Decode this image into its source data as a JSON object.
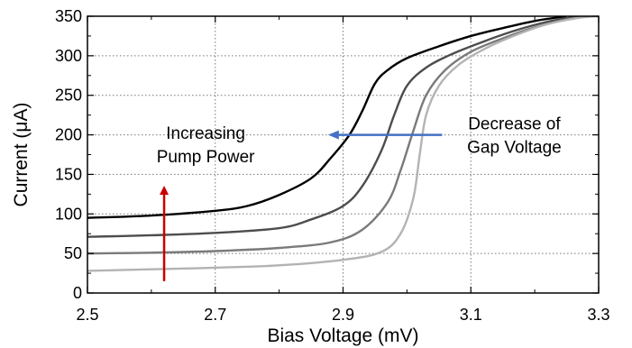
{
  "chart_data": {
    "type": "line",
    "xlabel": "Bias Voltage (mV)",
    "ylabel": "Current (μA)",
    "xlim": [
      2.5,
      3.3
    ],
    "ylim": [
      0,
      350
    ],
    "xticks": [
      "2.5",
      "2.7",
      "2.9",
      "3.1",
      "3.3"
    ],
    "yticks": [
      "0",
      "50",
      "100",
      "150",
      "200",
      "250",
      "300",
      "350"
    ],
    "grid": "dotted",
    "series": [
      {
        "color": "#000000",
        "points": [
          [
            2.5,
            95
          ],
          [
            2.6,
            98
          ],
          [
            2.7,
            104
          ],
          [
            2.75,
            110
          ],
          [
            2.8,
            124
          ],
          [
            2.85,
            145
          ],
          [
            2.88,
            170
          ],
          [
            2.91,
            200
          ],
          [
            2.93,
            230
          ],
          [
            2.95,
            265
          ],
          [
            2.97,
            282
          ],
          [
            3.0,
            297
          ],
          [
            3.05,
            312
          ],
          [
            3.1,
            325
          ],
          [
            3.15,
            335
          ],
          [
            3.2,
            344
          ],
          [
            3.25,
            350
          ]
        ]
      },
      {
        "color": "#4d4d4d",
        "points": [
          [
            2.5,
            71
          ],
          [
            2.6,
            73
          ],
          [
            2.7,
            76
          ],
          [
            2.8,
            82
          ],
          [
            2.85,
            93
          ],
          [
            2.9,
            110
          ],
          [
            2.93,
            135
          ],
          [
            2.96,
            180
          ],
          [
            2.98,
            225
          ],
          [
            3.0,
            262
          ],
          [
            3.03,
            285
          ],
          [
            3.07,
            302
          ],
          [
            3.12,
            318
          ],
          [
            3.17,
            332
          ],
          [
            3.22,
            343
          ],
          [
            3.27,
            350
          ]
        ]
      },
      {
        "color": "#7a7a7a",
        "points": [
          [
            2.5,
            50
          ],
          [
            2.6,
            51
          ],
          [
            2.7,
            53
          ],
          [
            2.8,
            57
          ],
          [
            2.88,
            64
          ],
          [
            2.93,
            80
          ],
          [
            2.97,
            115
          ],
          [
            2.99,
            155
          ],
          [
            3.01,
            205
          ],
          [
            3.03,
            250
          ],
          [
            3.06,
            282
          ],
          [
            3.1,
            305
          ],
          [
            3.15,
            322
          ],
          [
            3.2,
            336
          ],
          [
            3.25,
            346
          ],
          [
            3.28,
            350
          ]
        ]
      },
      {
        "color": "#b3b3b3",
        "points": [
          [
            2.5,
            28
          ],
          [
            2.6,
            30
          ],
          [
            2.7,
            32
          ],
          [
            2.8,
            35
          ],
          [
            2.9,
            42
          ],
          [
            2.96,
            52
          ],
          [
            2.99,
            75
          ],
          [
            3.01,
            120
          ],
          [
            3.02,
            175
          ],
          [
            3.03,
            225
          ],
          [
            3.05,
            262
          ],
          [
            3.08,
            288
          ],
          [
            3.12,
            308
          ],
          [
            3.17,
            326
          ],
          [
            3.22,
            340
          ],
          [
            3.27,
            348
          ],
          [
            3.3,
            350
          ]
        ]
      }
    ],
    "annotations": [
      {
        "id": "pump",
        "lines": [
          "Increasing",
          "Pump Power"
        ],
        "arrow_color": "#cc0000",
        "arrow_from": [
          2.62,
          15
        ],
        "arrow_to": [
          2.62,
          130
        ],
        "text_pos": [
          2.685,
          188
        ]
      },
      {
        "id": "gap",
        "lines": [
          "Decrease of",
          "Gap Voltage"
        ],
        "arrow_color": "#4472c4",
        "arrow_from": [
          3.055,
          200
        ],
        "arrow_to": [
          2.885,
          200
        ],
        "text_pos": [
          3.168,
          200
        ]
      }
    ]
  }
}
